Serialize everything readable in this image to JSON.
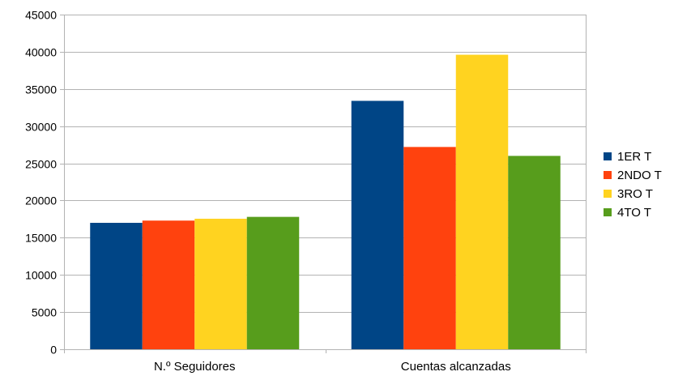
{
  "chart_data": {
    "type": "bar",
    "categories": [
      "N.º Seguidores",
      "Cuentas alcanzadas"
    ],
    "series": [
      {
        "name": "1ER T",
        "color": "#004586",
        "values": [
          17000,
          33400
        ]
      },
      {
        "name": "2NDO T",
        "color": "#ff420e",
        "values": [
          17300,
          27200
        ]
      },
      {
        "name": "3RO T",
        "color": "#ffd320",
        "values": [
          17550,
          39600
        ]
      },
      {
        "name": "4TO T",
        "color": "#579d1c",
        "values": [
          17800,
          26000
        ]
      }
    ],
    "ylim": [
      0,
      45000
    ],
    "yticks": [
      0,
      5000,
      10000,
      15000,
      20000,
      25000,
      30000,
      35000,
      40000,
      45000
    ],
    "grid": true,
    "legend_position": "right"
  }
}
